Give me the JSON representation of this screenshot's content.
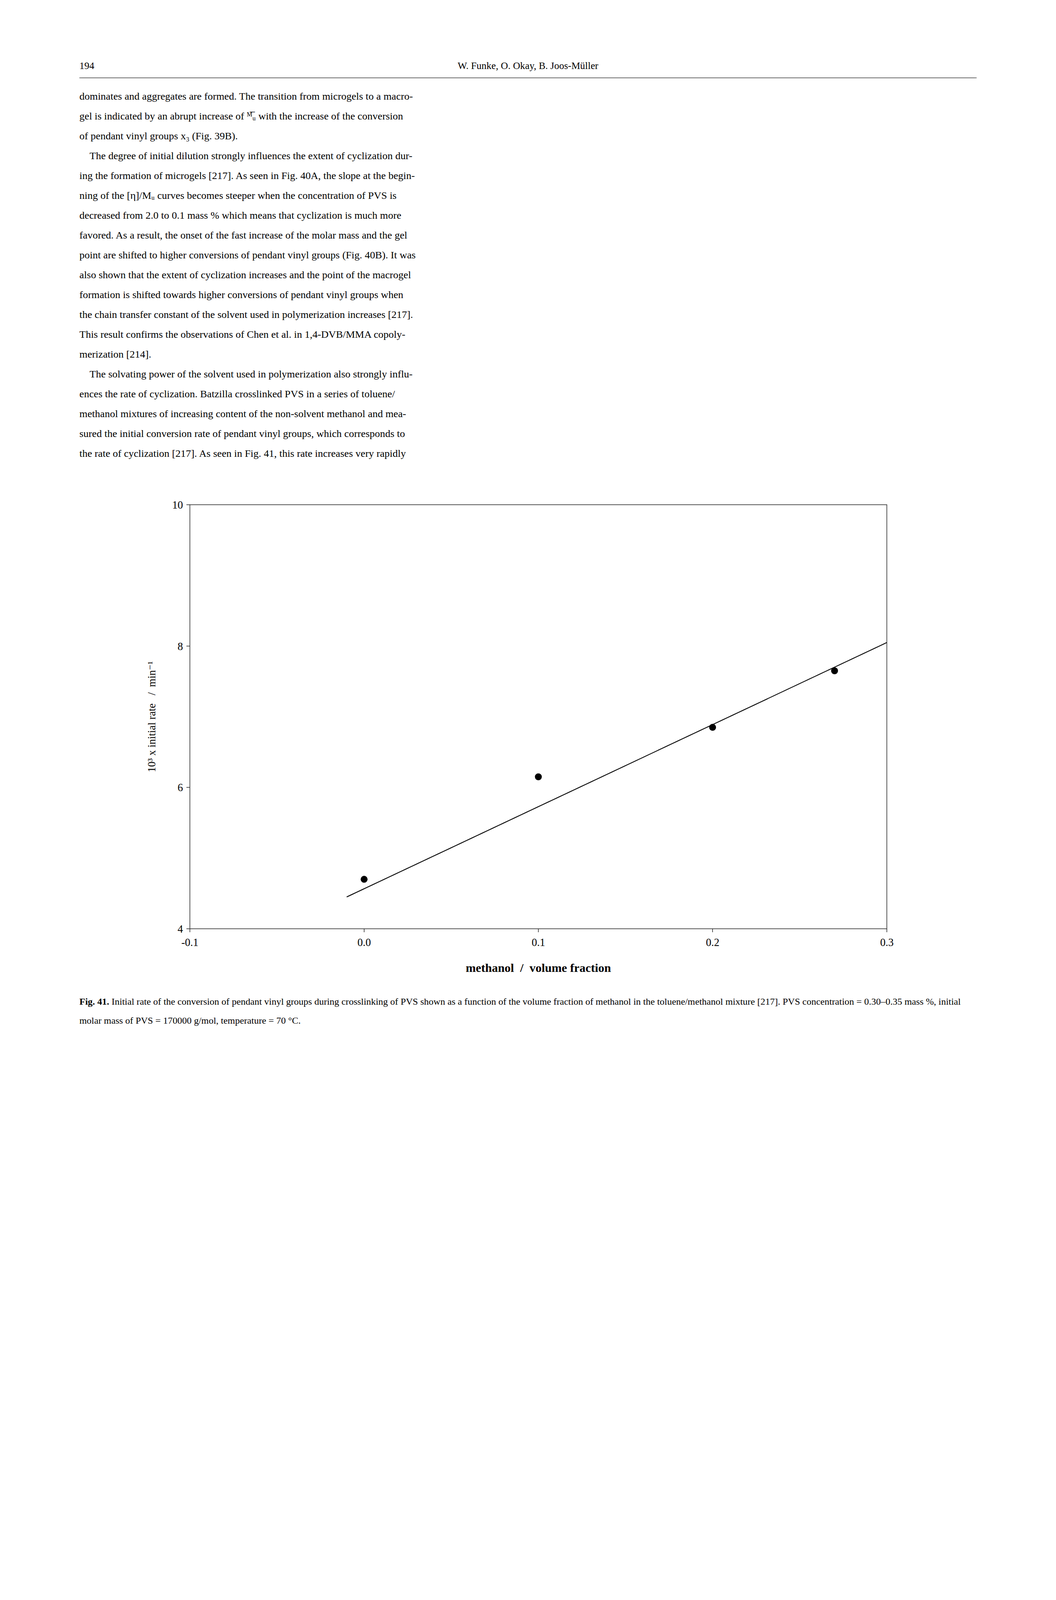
{
  "header_left": "194",
  "header_right": "W. Funke, O. Okay, B. Joos-Müller",
  "body_text": [
    "dominates and aggregates are formed. The transition from microgels to a macro-",
    "gel is indicated by an abrupt increase of ᴹ̅ᵤ with the increase of the conversion",
    "of pendant vinyl groups x₃ (Fig. 39B).",
    "    The degree of initial dilution strongly influences the extent of cyclization dur-",
    "ing the formation of microgels [217]. As seen in Fig. 40A, the slope at the begin-",
    "ning of the [η]/Mᵤ curves becomes steeper when the concentration of PVS is",
    "decreased from 2.0 to 0.1 mass % which means that cyclization is much more",
    "favored. As a result, the onset of the fast increase of the molar mass and the gel",
    "point are shifted to higher conversions of pendant vinyl groups (Fig. 40B). It was",
    "also shown that the extent of cyclization increases and the point of the macrogel",
    "formation is shifted towards higher conversions of pendant vinyl groups when",
    "the chain transfer constant of the solvent used in polymerization increases [217].",
    "This result confirms the observations of Chen et al. in 1,4-DVB/MMA copoly-",
    "merization [214].",
    "    The solvating power of the solvent used in polymerization also strongly influ-",
    "ences the rate of cyclization. Batzilla crosslinked PVS in a series of toluene/",
    "methanol mixtures of increasing content of the non-solvent methanol and mea-",
    "sured the initial conversion rate of pendant vinyl groups, which corresponds to",
    "the rate of cyclization [217]. As seen in Fig. 41, this rate increases very rapidly"
  ],
  "caption_bold": "Fig. 41.",
  "caption_text": " Initial rate of the conversion of pendant vinyl groups during crosslinking of PVS shown as a function of the volume fraction of methanol in the toluene/methanol mixture [217]. PVS concentration = 0.30–0.35 mass %, initial molar mass of PVS = 170000 g/mol, temperature = 70 °C.",
  "chart_data": {
    "type": "scatter",
    "xlabel": "methanol  /  volume fraction",
    "ylabel": "10³ x initial rate   /  min⁻¹",
    "series": [
      {
        "type": "scatter",
        "color": "black",
        "x": [
          0.0,
          0.1,
          0.2,
          0.27
        ],
        "values": [
          4.7,
          6.15,
          6.85,
          7.65
        ]
      },
      {
        "type": "line",
        "color": "black",
        "x": [
          -0.01,
          0.3
        ],
        "values": [
          4.45,
          8.05
        ]
      }
    ],
    "xlim": [
      -0.1,
      0.3
    ],
    "ylim": [
      4,
      10
    ],
    "xticks": [
      -0.1,
      {
        "value": 0.0,
        "label": "0.0"
      },
      0.1,
      0.2,
      0.3
    ],
    "yticks": [
      4,
      6,
      8,
      10
    ],
    "grid": false
  }
}
